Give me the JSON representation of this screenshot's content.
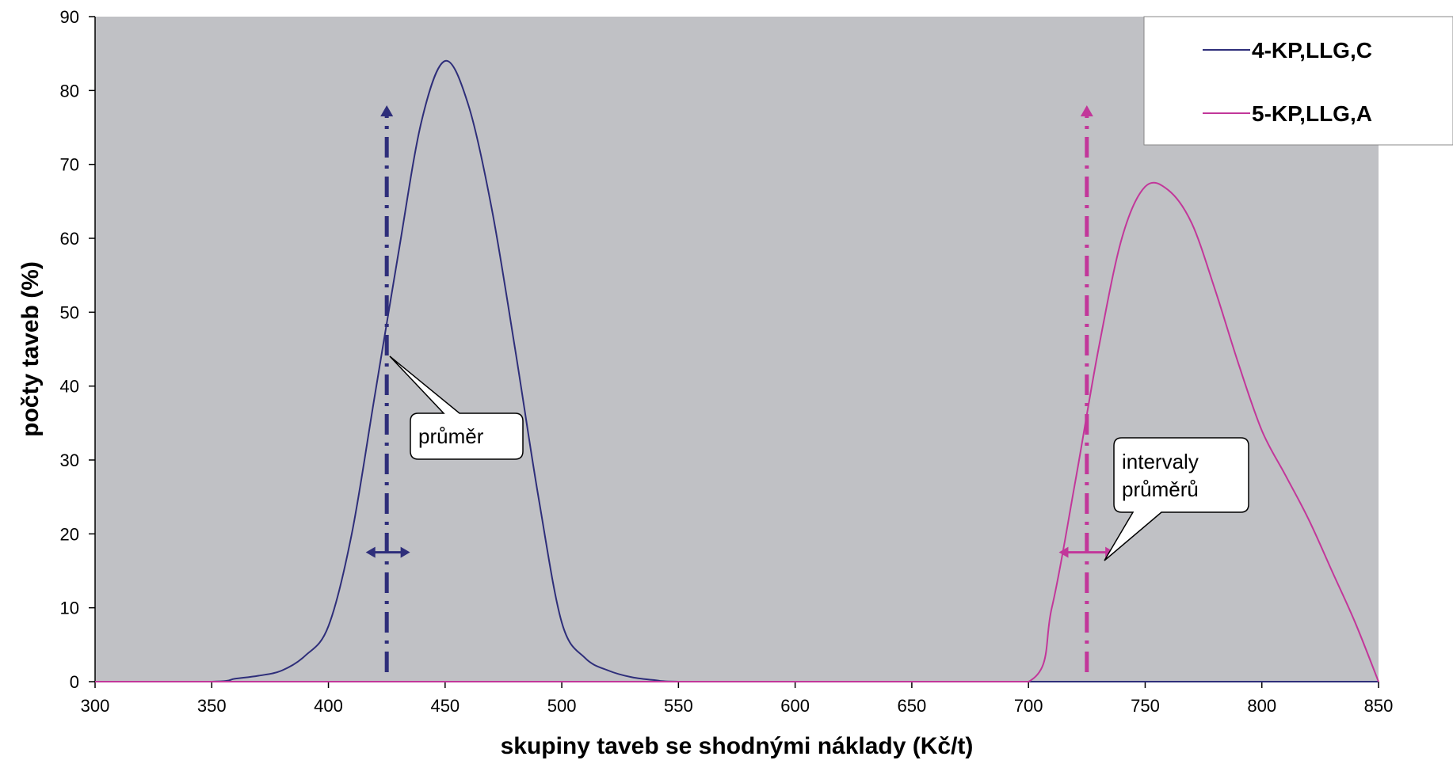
{
  "chart_data": {
    "type": "line",
    "title": "",
    "xlabel": "skupiny taveb se shodnými náklady (Kč/t)",
    "ylabel": "počty taveb (%)",
    "xlim": [
      300,
      850
    ],
    "ylim": [
      0,
      90
    ],
    "xticks": [
      300,
      350,
      400,
      450,
      500,
      550,
      600,
      650,
      700,
      750,
      800,
      850
    ],
    "yticks": [
      0,
      10,
      20,
      30,
      40,
      50,
      60,
      70,
      80,
      90
    ],
    "plot_background": "#c0c1c5",
    "grid": false,
    "legend_position": "top-right",
    "series": [
      {
        "name": "4-KP,LLG,C",
        "color": "#2e2e7a",
        "points": [
          [
            300,
            0
          ],
          [
            350,
            0
          ],
          [
            360,
            0.4
          ],
          [
            370,
            0.8
          ],
          [
            380,
            1.5
          ],
          [
            390,
            3.5
          ],
          [
            400,
            7.5
          ],
          [
            410,
            20
          ],
          [
            420,
            39
          ],
          [
            430,
            58
          ],
          [
            440,
            76
          ],
          [
            450,
            84
          ],
          [
            460,
            78
          ],
          [
            470,
            64
          ],
          [
            480,
            45
          ],
          [
            490,
            25
          ],
          [
            500,
            8
          ],
          [
            510,
            3.2
          ],
          [
            520,
            1.5
          ],
          [
            530,
            0.6
          ],
          [
            540,
            0.2
          ],
          [
            550,
            0
          ],
          [
            600,
            0
          ],
          [
            650,
            0
          ],
          [
            700,
            0
          ],
          [
            750,
            0
          ],
          [
            800,
            0
          ],
          [
            850,
            0
          ]
        ]
      },
      {
        "name": "5-KP,LLG,A",
        "color": "#c2379a",
        "points": [
          [
            300,
            0
          ],
          [
            350,
            0
          ],
          [
            400,
            0
          ],
          [
            450,
            0
          ],
          [
            500,
            0
          ],
          [
            550,
            0
          ],
          [
            600,
            0
          ],
          [
            650,
            0
          ],
          [
            700,
            0
          ],
          [
            710,
            10
          ],
          [
            720,
            27
          ],
          [
            730,
            45
          ],
          [
            740,
            60
          ],
          [
            750,
            67
          ],
          [
            760,
            66.5
          ],
          [
            770,
            62
          ],
          [
            780,
            53
          ],
          [
            790,
            43
          ],
          [
            800,
            34
          ],
          [
            810,
            28
          ],
          [
            820,
            22
          ],
          [
            830,
            15
          ],
          [
            840,
            8
          ],
          [
            850,
            0
          ]
        ]
      }
    ],
    "annotations": [
      {
        "type": "mean-line",
        "series": "4-KP,LLG,C",
        "x": 425,
        "y_top": 78,
        "interval": [
          416,
          435
        ],
        "interval_y": 17.5,
        "color": "#2e2e7a"
      },
      {
        "type": "mean-line",
        "series": "5-KP,LLG,A",
        "x": 725,
        "y_top": 78,
        "interval": [
          713,
          737
        ],
        "interval_y": 17.5,
        "color": "#c2379a"
      }
    ],
    "callouts": [
      {
        "lines": [
          "průměr"
        ]
      },
      {
        "lines": [
          "intervaly",
          "průměrů"
        ]
      }
    ]
  }
}
